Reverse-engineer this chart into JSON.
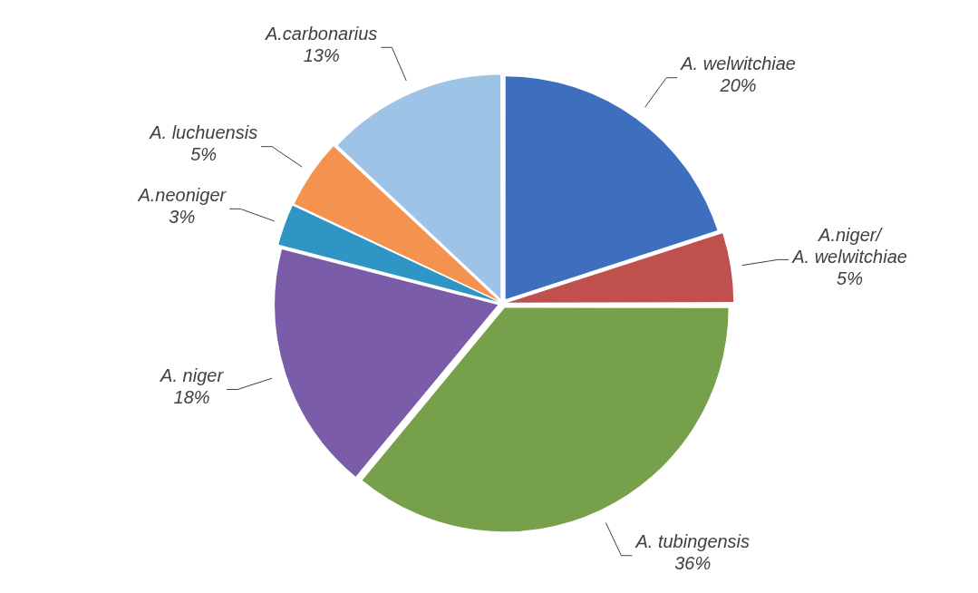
{
  "chart_data": {
    "type": "pie",
    "categories": [
      "A. welwitchiae",
      "A.niger/ A. welwitchiae",
      "A. tubingensis",
      "A. niger",
      "A.neoniger",
      "A. luchuensis",
      "A.carbonarius"
    ],
    "values": [
      20,
      5,
      36,
      18,
      3,
      5,
      13
    ],
    "value_labels": [
      "20%",
      "5%",
      "36%",
      "18%",
      "3%",
      "5%",
      "13%"
    ],
    "colors": [
      "#3d6fbe",
      "#c0504d",
      "#77a04a",
      "#7a5ca8",
      "#2e95c4",
      "#f4934f",
      "#9dc3e6"
    ]
  }
}
